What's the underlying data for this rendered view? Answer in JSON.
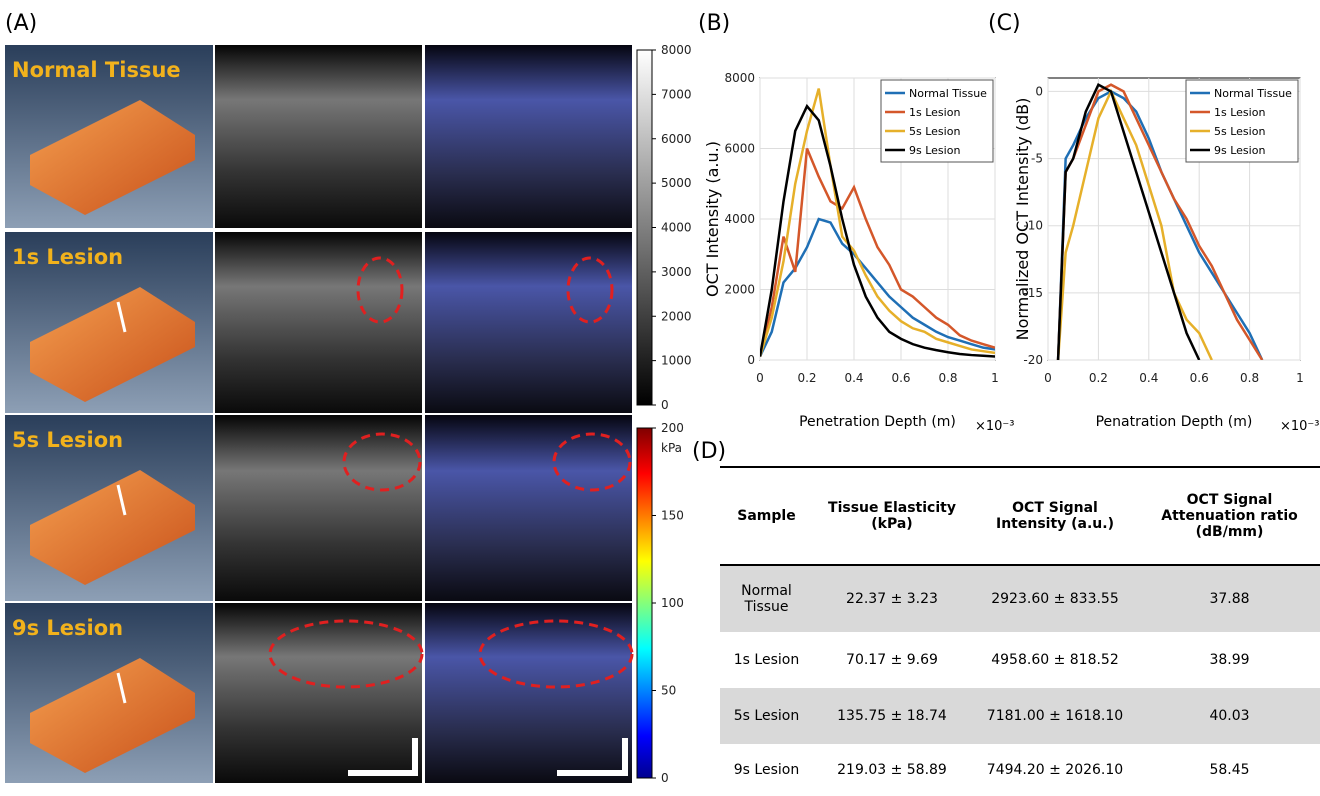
{
  "panel_labels": [
    "(A)",
    "(B)",
    "(C)",
    "(D)"
  ],
  "panel_a": {
    "row_labels": [
      "Normal Tissue",
      "1s Lesion",
      "5s Lesion",
      "9s Lesion"
    ],
    "colorbars": [
      {
        "lim": [
          0,
          8000
        ],
        "ticks": [
          0,
          1000,
          2000,
          3000,
          4000,
          5000,
          6000,
          7000,
          8000
        ]
      },
      {
        "lim": [
          0,
          200
        ],
        "ticks": [
          0,
          50,
          100,
          150,
          200
        ],
        "unit": "kPa"
      }
    ]
  },
  "chart_data": [
    {
      "type": "line",
      "ylabel": "OCT Intensity (a.u.)",
      "xlabel": "Penetration Depth (m)",
      "xscale_label": "×10⁻³",
      "x": [
        0,
        0.05,
        0.1,
        0.15,
        0.2,
        0.25,
        0.3,
        0.35,
        0.4,
        0.45,
        0.5,
        0.55,
        0.6,
        0.65,
        0.7,
        0.75,
        0.8,
        0.85,
        0.9,
        0.95,
        1
      ],
      "xlim": [
        0,
        1
      ],
      "xticks": [
        0,
        0.2,
        0.4,
        0.6,
        0.8,
        1
      ],
      "ylim": [
        0,
        8000
      ],
      "yticks": [
        0,
        2000,
        4000,
        6000,
        8000
      ],
      "grid": true,
      "legend": "top-right",
      "series": [
        {
          "name": "Normal Tissue",
          "color": "#1f6fb5",
          "values": [
            100,
            800,
            2200,
            2600,
            3200,
            4000,
            3900,
            3300,
            3000,
            2600,
            2200,
            1800,
            1500,
            1200,
            1000,
            800,
            650,
            550,
            450,
            350,
            300
          ]
        },
        {
          "name": "1s Lesion",
          "color": "#d4572a",
          "values": [
            100,
            1500,
            3500,
            2500,
            6000,
            5200,
            4500,
            4300,
            4900,
            4000,
            3200,
            2700,
            2000,
            1800,
            1500,
            1200,
            1000,
            700,
            550,
            450,
            350
          ]
        },
        {
          "name": "5s Lesion",
          "color": "#e6b02a",
          "values": [
            100,
            1200,
            2800,
            5000,
            6500,
            7700,
            5500,
            3500,
            3100,
            2400,
            1800,
            1400,
            1100,
            900,
            800,
            600,
            500,
            400,
            300,
            250,
            200
          ]
        },
        {
          "name": "9s Lesion",
          "color": "#000000",
          "values": [
            100,
            2000,
            4500,
            6500,
            7200,
            6800,
            5500,
            4000,
            2700,
            1800,
            1200,
            800,
            600,
            450,
            350,
            280,
            220,
            170,
            140,
            120,
            100
          ]
        }
      ]
    },
    {
      "type": "line",
      "ylabel": "Normalized OCT Intensity (dB)",
      "xlabel": "Penatration Depth (m)",
      "xscale_label": "×10⁻³",
      "x": [
        0.04,
        0.07,
        0.1,
        0.15,
        0.2,
        0.25,
        0.3,
        0.35,
        0.4,
        0.45,
        0.5,
        0.55,
        0.6,
        0.65,
        0.7,
        0.75,
        0.8,
        0.85
      ],
      "xlim": [
        0,
        1
      ],
      "xticks": [
        0,
        0.2,
        0.4,
        0.6,
        0.8,
        1
      ],
      "ylim": [
        -20,
        1
      ],
      "yticks": [
        -20,
        -15,
        -10,
        -5,
        0
      ],
      "grid": true,
      "legend": "top-right",
      "series": [
        {
          "name": "Normal Tissue",
          "color": "#1f6fb5",
          "values": [
            -20,
            -5,
            -4,
            -2,
            -0.5,
            0,
            -0.5,
            -1.5,
            -3.5,
            -6,
            -8,
            -10,
            -12,
            -13.5,
            -15,
            -16.5,
            -18,
            -20
          ]
        },
        {
          "name": "1s Lesion",
          "color": "#d4572a",
          "values": [
            -20,
            -6,
            -5,
            -2.5,
            0,
            0.5,
            0,
            -2,
            -4,
            -6,
            -8,
            -9.5,
            -11.5,
            -13,
            -15,
            -17,
            -18.5,
            -20
          ]
        },
        {
          "name": "5s Lesion",
          "color": "#e6b02a",
          "values": [
            -20,
            -12,
            -10,
            -6,
            -2,
            0,
            -2,
            -4,
            -7,
            -10,
            -15,
            -17,
            -18,
            -20,
            null,
            null,
            null,
            null
          ]
        },
        {
          "name": "9s Lesion",
          "color": "#000000",
          "values": [
            -20,
            -6,
            -5,
            -1.5,
            0.5,
            0,
            -3,
            -6,
            -9,
            -12,
            -15,
            -18,
            -20,
            null,
            null,
            null,
            null,
            null
          ]
        }
      ]
    }
  ],
  "table": {
    "header": [
      "Sample",
      "Tissue Elasticity (kPa)",
      "OCT Signal Intensity (a.u.)",
      "OCT Signal Attenuation ratio (dB/mm)"
    ],
    "rows": [
      [
        "Normal Tissue",
        "22.37 ± 3.23",
        "2923.60 ± 833.55",
        "37.88"
      ],
      [
        "1s Lesion",
        "70.17 ± 9.69",
        "4958.60 ± 818.52",
        "38.99"
      ],
      [
        "5s Lesion",
        "135.75 ± 18.74",
        "7181.00 ± 1618.10",
        "40.03"
      ],
      [
        "9s Lesion",
        "219.03 ± 58.89",
        "7494.20 ± 2026.10",
        "58.45"
      ]
    ]
  }
}
